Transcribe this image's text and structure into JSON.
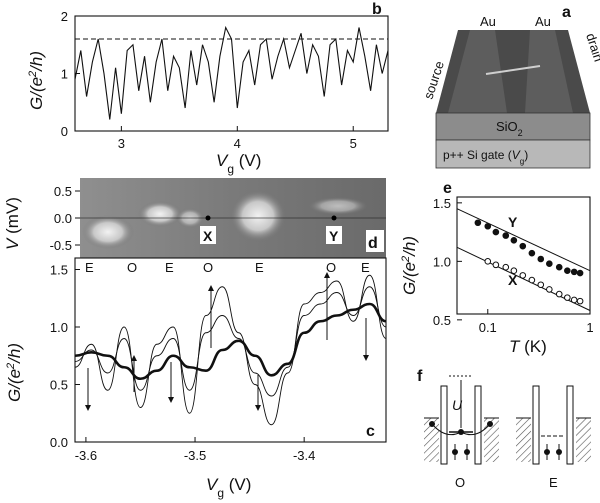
{
  "panel_labels": {
    "a": "a",
    "b": "b",
    "c": "c",
    "d": "d",
    "e": "e",
    "f": "f"
  },
  "panel_a": {
    "electrode_left": "Au",
    "electrode_right": "Au",
    "source_label": "source",
    "drain_label": "drain",
    "oxide_label": "SiO",
    "oxide_sub": "2",
    "gate_label": "p++ Si  gate (",
    "gate_var": "V",
    "gate_sub": "g",
    "gate_close": ")"
  },
  "panel_d": {
    "ylabel": "V (mV)",
    "yticks": [
      "0.5",
      "0.0",
      "-0.5"
    ],
    "markers": [
      "X",
      "Y"
    ],
    "parity_labels": [
      "E",
      "O",
      "E",
      "O",
      "E",
      "O",
      "E"
    ]
  },
  "panel_e": {
    "ylabel": "G/(e²/h)",
    "xlabel": "T (K)",
    "yticks": [
      "1.5",
      "1.0",
      "0.5"
    ],
    "xticks": [
      "0.1",
      "1"
    ],
    "series_labels": [
      "Y",
      "X"
    ]
  },
  "panel_f": {
    "energy_label": "U",
    "state_labels": [
      "O",
      "E"
    ]
  },
  "chart_data": [
    {
      "panel": "b",
      "type": "line",
      "xlabel": "V_g (V)",
      "ylabel": "G/(e²/h)",
      "xlim": [
        2.6,
        5.3
      ],
      "ylim": [
        0,
        2
      ],
      "xticks": [
        "3",
        "4",
        "5"
      ],
      "yticks": [
        "0",
        "1",
        "2"
      ],
      "reference_line_y": 1.6,
      "series": [
        {
          "x": [
            2.6,
            2.65,
            2.7,
            2.75,
            2.8,
            2.85,
            2.9,
            2.95,
            3.0,
            3.05,
            3.1,
            3.15,
            3.2,
            3.25,
            3.3,
            3.35,
            3.4,
            3.45,
            3.5,
            3.55,
            3.6,
            3.65,
            3.7,
            3.75,
            3.8,
            3.85,
            3.9,
            3.95,
            4.0,
            4.05,
            4.1,
            4.15,
            4.2,
            4.25,
            4.3,
            4.35,
            4.4,
            4.45,
            4.5,
            4.55,
            4.6,
            4.65,
            4.7,
            4.75,
            4.8,
            4.85,
            4.9,
            4.95,
            5.0,
            5.05,
            5.1,
            5.15,
            5.2,
            5.25,
            5.3
          ],
          "y": [
            0.9,
            1.4,
            0.6,
            1.2,
            1.6,
            1.0,
            0.2,
            1.1,
            0.3,
            1.4,
            1.5,
            0.7,
            1.3,
            0.5,
            1.2,
            1.6,
            0.7,
            1.3,
            1.1,
            0.4,
            1.4,
            0.8,
            1.5,
            1.2,
            0.5,
            1.3,
            1.8,
            1.6,
            0.4,
            1.2,
            1.4,
            0.8,
            1.5,
            1.6,
            0.9,
            1.3,
            1.6,
            1.1,
            1.4,
            1.7,
            1.0,
            1.5,
            1.3,
            0.6,
            1.5,
            1.6,
            0.8,
            1.4,
            1.2,
            1.8,
            1.3,
            0.7,
            1.5,
            1.0,
            1.4
          ]
        }
      ]
    },
    {
      "panel": "c",
      "type": "line",
      "xlabel": "V_g (V)",
      "ylabel": "G/(e²/h)",
      "xlim": [
        -3.61,
        -3.325
      ],
      "ylim": [
        0,
        1.6
      ],
      "xticks": [
        "-3.6",
        "-3.5",
        "-3.4"
      ],
      "yticks": [
        "0.0",
        "0.5",
        "1.0",
        "1.5"
      ],
      "series": [
        {
          "x": [
            -3.61,
            -3.595,
            -3.58,
            -3.565,
            -3.55,
            -3.535,
            -3.52,
            -3.505,
            -3.49,
            -3.475,
            -3.46,
            -3.445,
            -3.43,
            -3.415,
            -3.4,
            -3.385,
            -3.37,
            -3.355,
            -3.34,
            -3.325
          ],
          "y": [
            0.75,
            0.78,
            0.75,
            0.65,
            0.55,
            0.62,
            0.75,
            0.65,
            0.62,
            0.8,
            0.88,
            0.75,
            0.58,
            0.68,
            0.95,
            1.05,
            1.1,
            1.15,
            1.2,
            1.05
          ]
        },
        {
          "x": [
            -3.61,
            -3.595,
            -3.58,
            -3.565,
            -3.55,
            -3.535,
            -3.52,
            -3.505,
            -3.49,
            -3.475,
            -3.46,
            -3.445,
            -3.43,
            -3.415,
            -3.4,
            -3.385,
            -3.37,
            -3.355,
            -3.34,
            -3.325
          ],
          "y": [
            0.7,
            0.8,
            0.6,
            0.9,
            0.45,
            0.75,
            0.9,
            0.45,
            0.95,
            1.1,
            0.9,
            0.6,
            0.4,
            0.65,
            1.1,
            1.2,
            1.3,
            1.1,
            1.35,
            1.0
          ]
        },
        {
          "x": [
            -3.61,
            -3.595,
            -3.58,
            -3.565,
            -3.55,
            -3.535,
            -3.52,
            -3.505,
            -3.49,
            -3.475,
            -3.46,
            -3.445,
            -3.43,
            -3.415,
            -3.4,
            -3.385,
            -3.37,
            -3.355,
            -3.34,
            -3.325
          ],
          "y": [
            0.65,
            0.85,
            0.45,
            1.0,
            0.3,
            0.85,
            1.0,
            0.25,
            1.1,
            1.35,
            0.95,
            0.5,
            0.15,
            0.6,
            1.2,
            1.3,
            1.4,
            1.05,
            1.45,
            0.9
          ]
        }
      ]
    },
    {
      "panel": "e",
      "type": "scatter",
      "xlabel": "T (K)",
      "ylabel": "G/(e²/h)",
      "xscale": "log",
      "xlim": [
        0.05,
        1.0
      ],
      "ylim": [
        0.55,
        1.55
      ],
      "series": [
        {
          "name": "Y",
          "marker": "filled",
          "x": [
            0.08,
            0.1,
            0.12,
            0.15,
            0.18,
            0.22,
            0.27,
            0.33,
            0.4,
            0.5,
            0.6,
            0.7,
            0.8
          ],
          "y": [
            1.33,
            1.3,
            1.25,
            1.22,
            1.18,
            1.13,
            1.07,
            1.02,
            0.98,
            0.95,
            0.92,
            0.91,
            0.9
          ]
        },
        {
          "name": "X",
          "marker": "open",
          "x": [
            0.1,
            0.12,
            0.15,
            0.18,
            0.22,
            0.27,
            0.33,
            0.4,
            0.5,
            0.6,
            0.7,
            0.8
          ],
          "y": [
            1.0,
            0.97,
            0.95,
            0.92,
            0.88,
            0.84,
            0.8,
            0.76,
            0.72,
            0.69,
            0.67,
            0.66
          ]
        }
      ]
    }
  ]
}
